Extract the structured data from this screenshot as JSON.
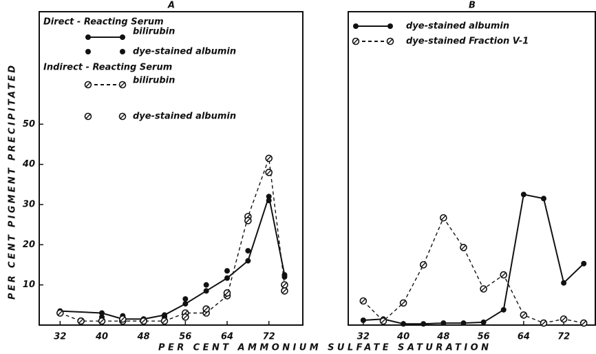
{
  "chart_data": [
    {
      "type": "line",
      "title": "A",
      "y_label": "PER CENT PIGMENT PRECIPITATED",
      "x_label": "PER CENT AMMONIUM SULFATE SATURATION",
      "xlim": [
        28,
        78.5
      ],
      "ylim": [
        0,
        78
      ],
      "xticks": [
        32,
        40,
        48,
        56,
        64,
        72
      ],
      "yticks": [
        10,
        20,
        30,
        40,
        50
      ],
      "series_groups": [
        {
          "name": "Direct - Reacting Serum",
          "series": [
            {
              "name": "bilirubin",
              "color": "#111",
              "line": "solid",
              "marker": "filled",
              "x": [
                32,
                40,
                44,
                48,
                52,
                56,
                60,
                64,
                68,
                72,
                75
              ],
              "values": [
                3.5,
                3,
                1.5,
                1.5,
                2.5,
                5.3,
                8.5,
                11.7,
                16,
                32,
                12.5
              ]
            },
            {
              "name": "dye-stained albumin",
              "color": "#111",
              "line": "none",
              "marker": "filled",
              "x": [
                32,
                40,
                44,
                48,
                52,
                56,
                60,
                64,
                68,
                72,
                75
              ],
              "values": [
                3,
                2,
                2.3,
                1.5,
                2,
                6.5,
                10,
                13.5,
                18.5,
                31,
                12
              ]
            }
          ]
        },
        {
          "name": "Indirect - Reacting Serum",
          "series": [
            {
              "name": "bilirubin",
              "color": "#111",
              "line": "dashed",
              "marker": "open",
              "x": [
                32,
                36,
                40,
                44,
                48,
                52,
                56,
                60,
                64,
                68,
                72,
                75
              ],
              "values": [
                3,
                1,
                1,
                1,
                1,
                1,
                3,
                3,
                7.3,
                27,
                41.5,
                10
              ]
            },
            {
              "name": "dye-stained albumin",
              "color": "#111",
              "line": "none",
              "marker": "open",
              "x": [
                36,
                40,
                44,
                48,
                56,
                60,
                64,
                68,
                72,
                75
              ],
              "values": [
                1,
                1,
                1.5,
                1,
                2,
                4,
                8,
                26,
                38,
                8.5
              ]
            }
          ]
        }
      ]
    },
    {
      "type": "line",
      "title": "B",
      "xlim": [
        29,
        78.3
      ],
      "ylim": [
        0,
        78
      ],
      "xticks": [
        32,
        40,
        48,
        56,
        64,
        72
      ],
      "series": [
        {
          "name": "dye-stained albumin",
          "color": "#111",
          "line": "solid",
          "marker": "filled",
          "x": [
            32,
            36,
            40,
            44,
            48,
            52,
            56,
            60,
            64,
            68,
            72,
            76
          ],
          "values": [
            1.2,
            1.5,
            0.3,
            0.3,
            0.5,
            0.5,
            0.7,
            3.8,
            32.5,
            31.5,
            10.5,
            15.3
          ]
        },
        {
          "name": "dye-stained Fraction V-1",
          "color": "#111",
          "line": "dashed",
          "marker": "open",
          "x": [
            32,
            36,
            40,
            44,
            48,
            52,
            56,
            60,
            64,
            68,
            72,
            76
          ],
          "values": [
            6,
            1,
            5.5,
            15,
            26.7,
            19.3,
            9,
            12.5,
            2.5,
            0.5,
            1.5,
            0.5
          ]
        }
      ]
    }
  ]
}
